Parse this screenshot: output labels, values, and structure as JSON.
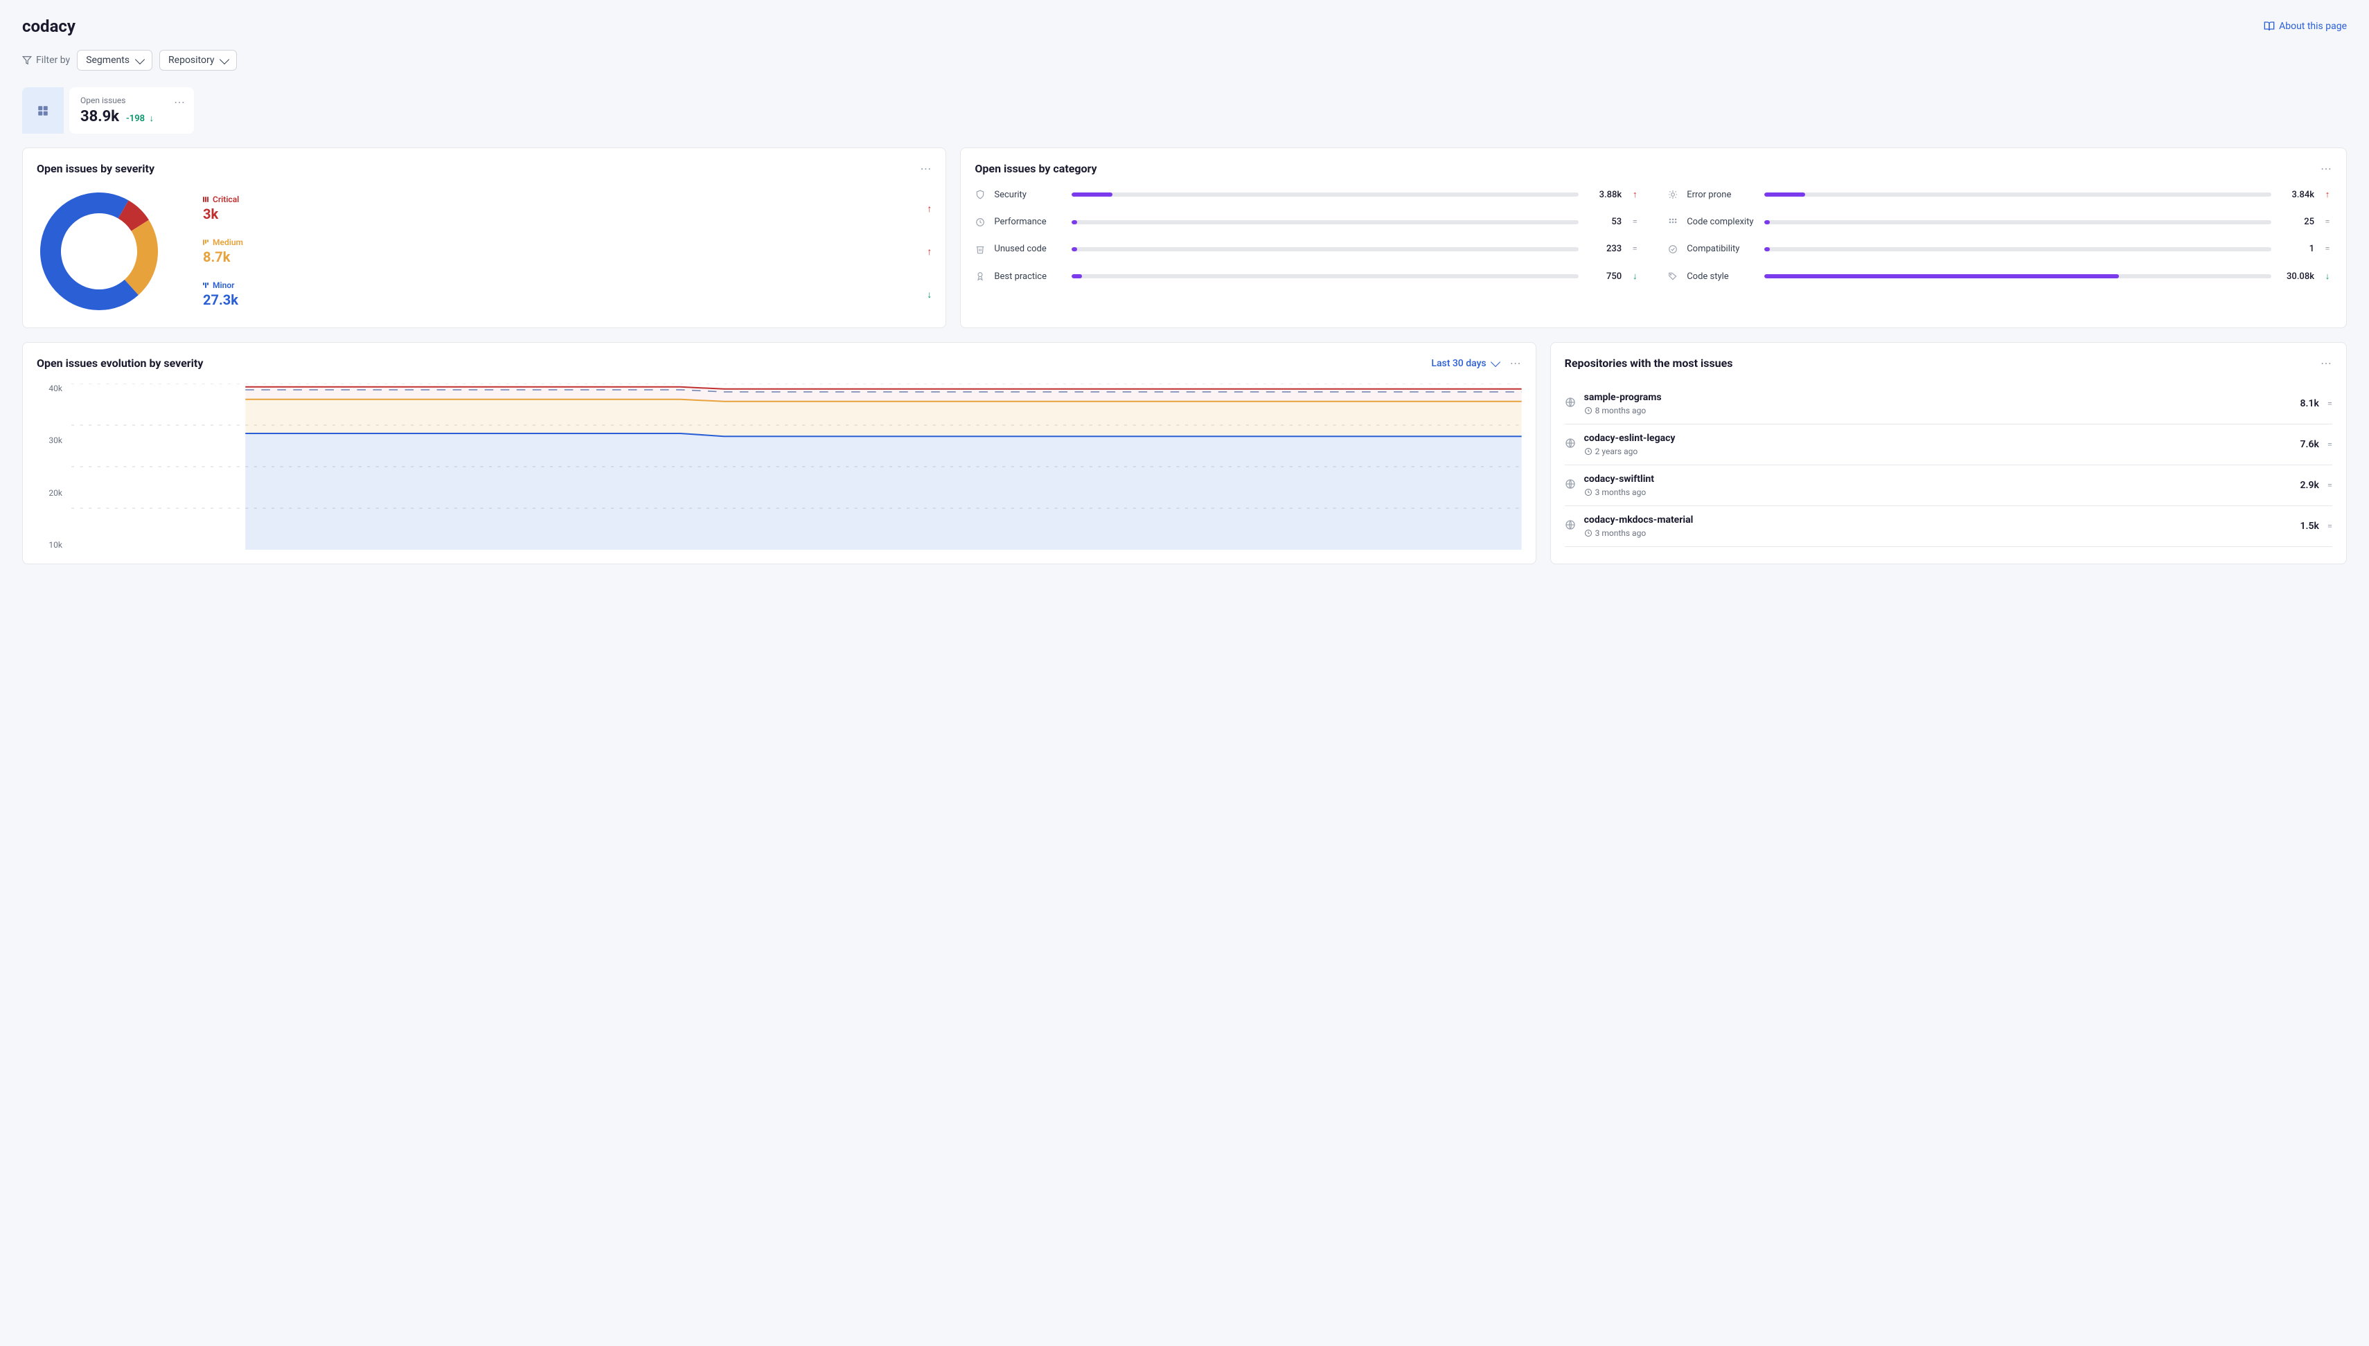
{
  "header": {
    "title": "codacy",
    "about_link": "About this page"
  },
  "filters": {
    "label": "Filter by",
    "segments": "Segments",
    "repository": "Repository"
  },
  "stats": {
    "open_issues_label": "Open issues",
    "open_issues_value": "38.9k",
    "open_issues_delta": "-198"
  },
  "severity": {
    "title": "Open issues by severity",
    "donut": {
      "critical_pct": 7.7,
      "medium_pct": 22.3,
      "minor_pct": 70.0,
      "critical_color": "#c03030",
      "medium_color": "#e8a23b",
      "minor_color": "#2a5fd6",
      "bg": "#ffffff"
    },
    "items": [
      {
        "label": "Critical",
        "value": "3k",
        "trend": "up",
        "color": "#c03030",
        "mark_heights": [
          8,
          8,
          8
        ]
      },
      {
        "label": "Medium",
        "value": "8.7k",
        "trend": "up",
        "color": "#e8a23b",
        "mark_heights": [
          8,
          6,
          4
        ]
      },
      {
        "label": "Minor",
        "value": "27.3k",
        "trend": "down",
        "color": "#2a5fd6",
        "mark_heights": [
          4,
          8,
          4
        ]
      }
    ]
  },
  "category": {
    "title": "Open issues by category",
    "bar_bg": "#e5e7eb",
    "items": [
      {
        "icon": "shield",
        "label": "Security",
        "value": "3.88k",
        "fill_pct": 8,
        "color": "#7c3aed",
        "trend": "up"
      },
      {
        "icon": "bug",
        "label": "Error prone",
        "value": "3.84k",
        "fill_pct": 8,
        "color": "#7c3aed",
        "trend": "up"
      },
      {
        "icon": "clock",
        "label": "Performance",
        "value": "53",
        "fill_pct": 1,
        "color": "#7c3aed",
        "trend": "neutral"
      },
      {
        "icon": "grid",
        "label": "Code complexity",
        "value": "25",
        "fill_pct": 1,
        "color": "#7c3aed",
        "trend": "neutral"
      },
      {
        "icon": "trash",
        "label": "Unused code",
        "value": "233",
        "fill_pct": 1,
        "color": "#7c3aed",
        "trend": "neutral"
      },
      {
        "icon": "compat",
        "label": "Compatibility",
        "value": "1",
        "fill_pct": 0,
        "color": "#7c3aed",
        "trend": "neutral"
      },
      {
        "icon": "medal",
        "label": "Best practice",
        "value": "750",
        "fill_pct": 2,
        "color": "#7c3aed",
        "trend": "down"
      },
      {
        "icon": "tag",
        "label": "Code style",
        "value": "30.08k",
        "fill_pct": 70,
        "color": "#7c3aed",
        "trend": "down"
      }
    ]
  },
  "evolution": {
    "title": "Open issues evolution by severity",
    "range": "Last 30 days",
    "y_ticks": [
      "40k",
      "30k",
      "20k",
      "10k"
    ],
    "ymax": 40000,
    "series": {
      "critical_top": {
        "color": "#c03030",
        "fill": "rgba(192,48,48,0.05)",
        "left_y": 39200,
        "right_y": 38700
      },
      "medium_top": {
        "color": "#e8a23b",
        "fill": "rgba(232,162,59,0.12)",
        "left_y": 36200,
        "right_y": 35700
      },
      "minor_top": {
        "color": "#2a5fd6",
        "fill": "rgba(42,95,214,0.12)",
        "left_y": 28000,
        "right_y": 27300
      },
      "dashed": {
        "color": "#6b7fb0",
        "left_y": 38500,
        "right_y": 38000
      }
    },
    "step_at": 0.42
  },
  "repos": {
    "title": "Repositories with the most issues",
    "items": [
      {
        "name": "sample-programs",
        "time": "8 months ago",
        "count": "8.1k"
      },
      {
        "name": "codacy-eslint-legacy",
        "time": "2 years ago",
        "count": "7.6k"
      },
      {
        "name": "codacy-swiftlint",
        "time": "3 months ago",
        "count": "2.9k"
      },
      {
        "name": "codacy-mkdocs-material",
        "time": "3 months ago",
        "count": "1.5k"
      }
    ]
  },
  "colors": {
    "link": "#2a5fd6",
    "text": "#1a1a2e",
    "muted": "#6b7280",
    "border": "#e5e7eb",
    "page_bg": "#f5f7fa"
  }
}
